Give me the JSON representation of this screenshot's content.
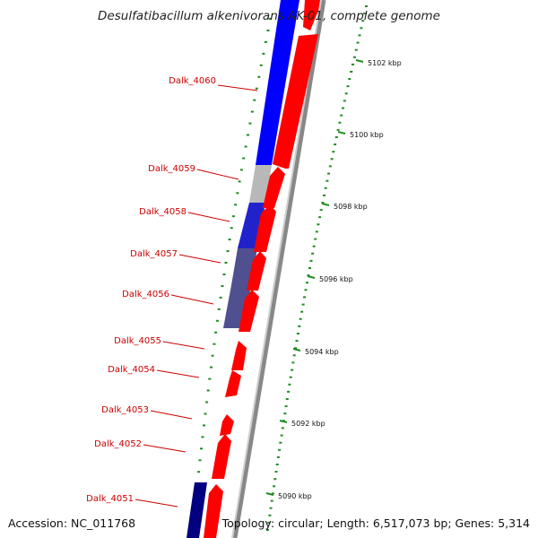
{
  "title": "Desulfatibacillum alkenivorans AK-01, complete genome",
  "accession": "Accession: NC_011768",
  "topology": "Topology: circular; Length: 6,517,073 bp; Genes: 5,314",
  "colors": {
    "forward_gene": "#ff0000",
    "reverse_gene": "#0000ff",
    "reverse_gene_dark": "#000080",
    "reverse_gene_muted": "#505090",
    "gray_feature": "#b8b8b8",
    "label": "#cc0000",
    "tick": "#228b22"
  },
  "scale_ticks": [
    {
      "label": "5102 kbp"
    },
    {
      "label": "5100 kbp"
    },
    {
      "label": "5098 kbp"
    },
    {
      "label": "5096 kbp"
    },
    {
      "label": "5094 kbp"
    },
    {
      "label": "5092 kbp"
    },
    {
      "label": "5090 kbp"
    }
  ],
  "gene_labels": [
    {
      "label": "Dalk_4060"
    },
    {
      "label": "Dalk_4059"
    },
    {
      "label": "Dalk_4058"
    },
    {
      "label": "Dalk_4057"
    },
    {
      "label": "Dalk_4056"
    },
    {
      "label": "Dalk_4055"
    },
    {
      "label": "Dalk_4054"
    },
    {
      "label": "Dalk_4053"
    },
    {
      "label": "Dalk_4052"
    },
    {
      "label": "Dalk_4051"
    }
  ]
}
